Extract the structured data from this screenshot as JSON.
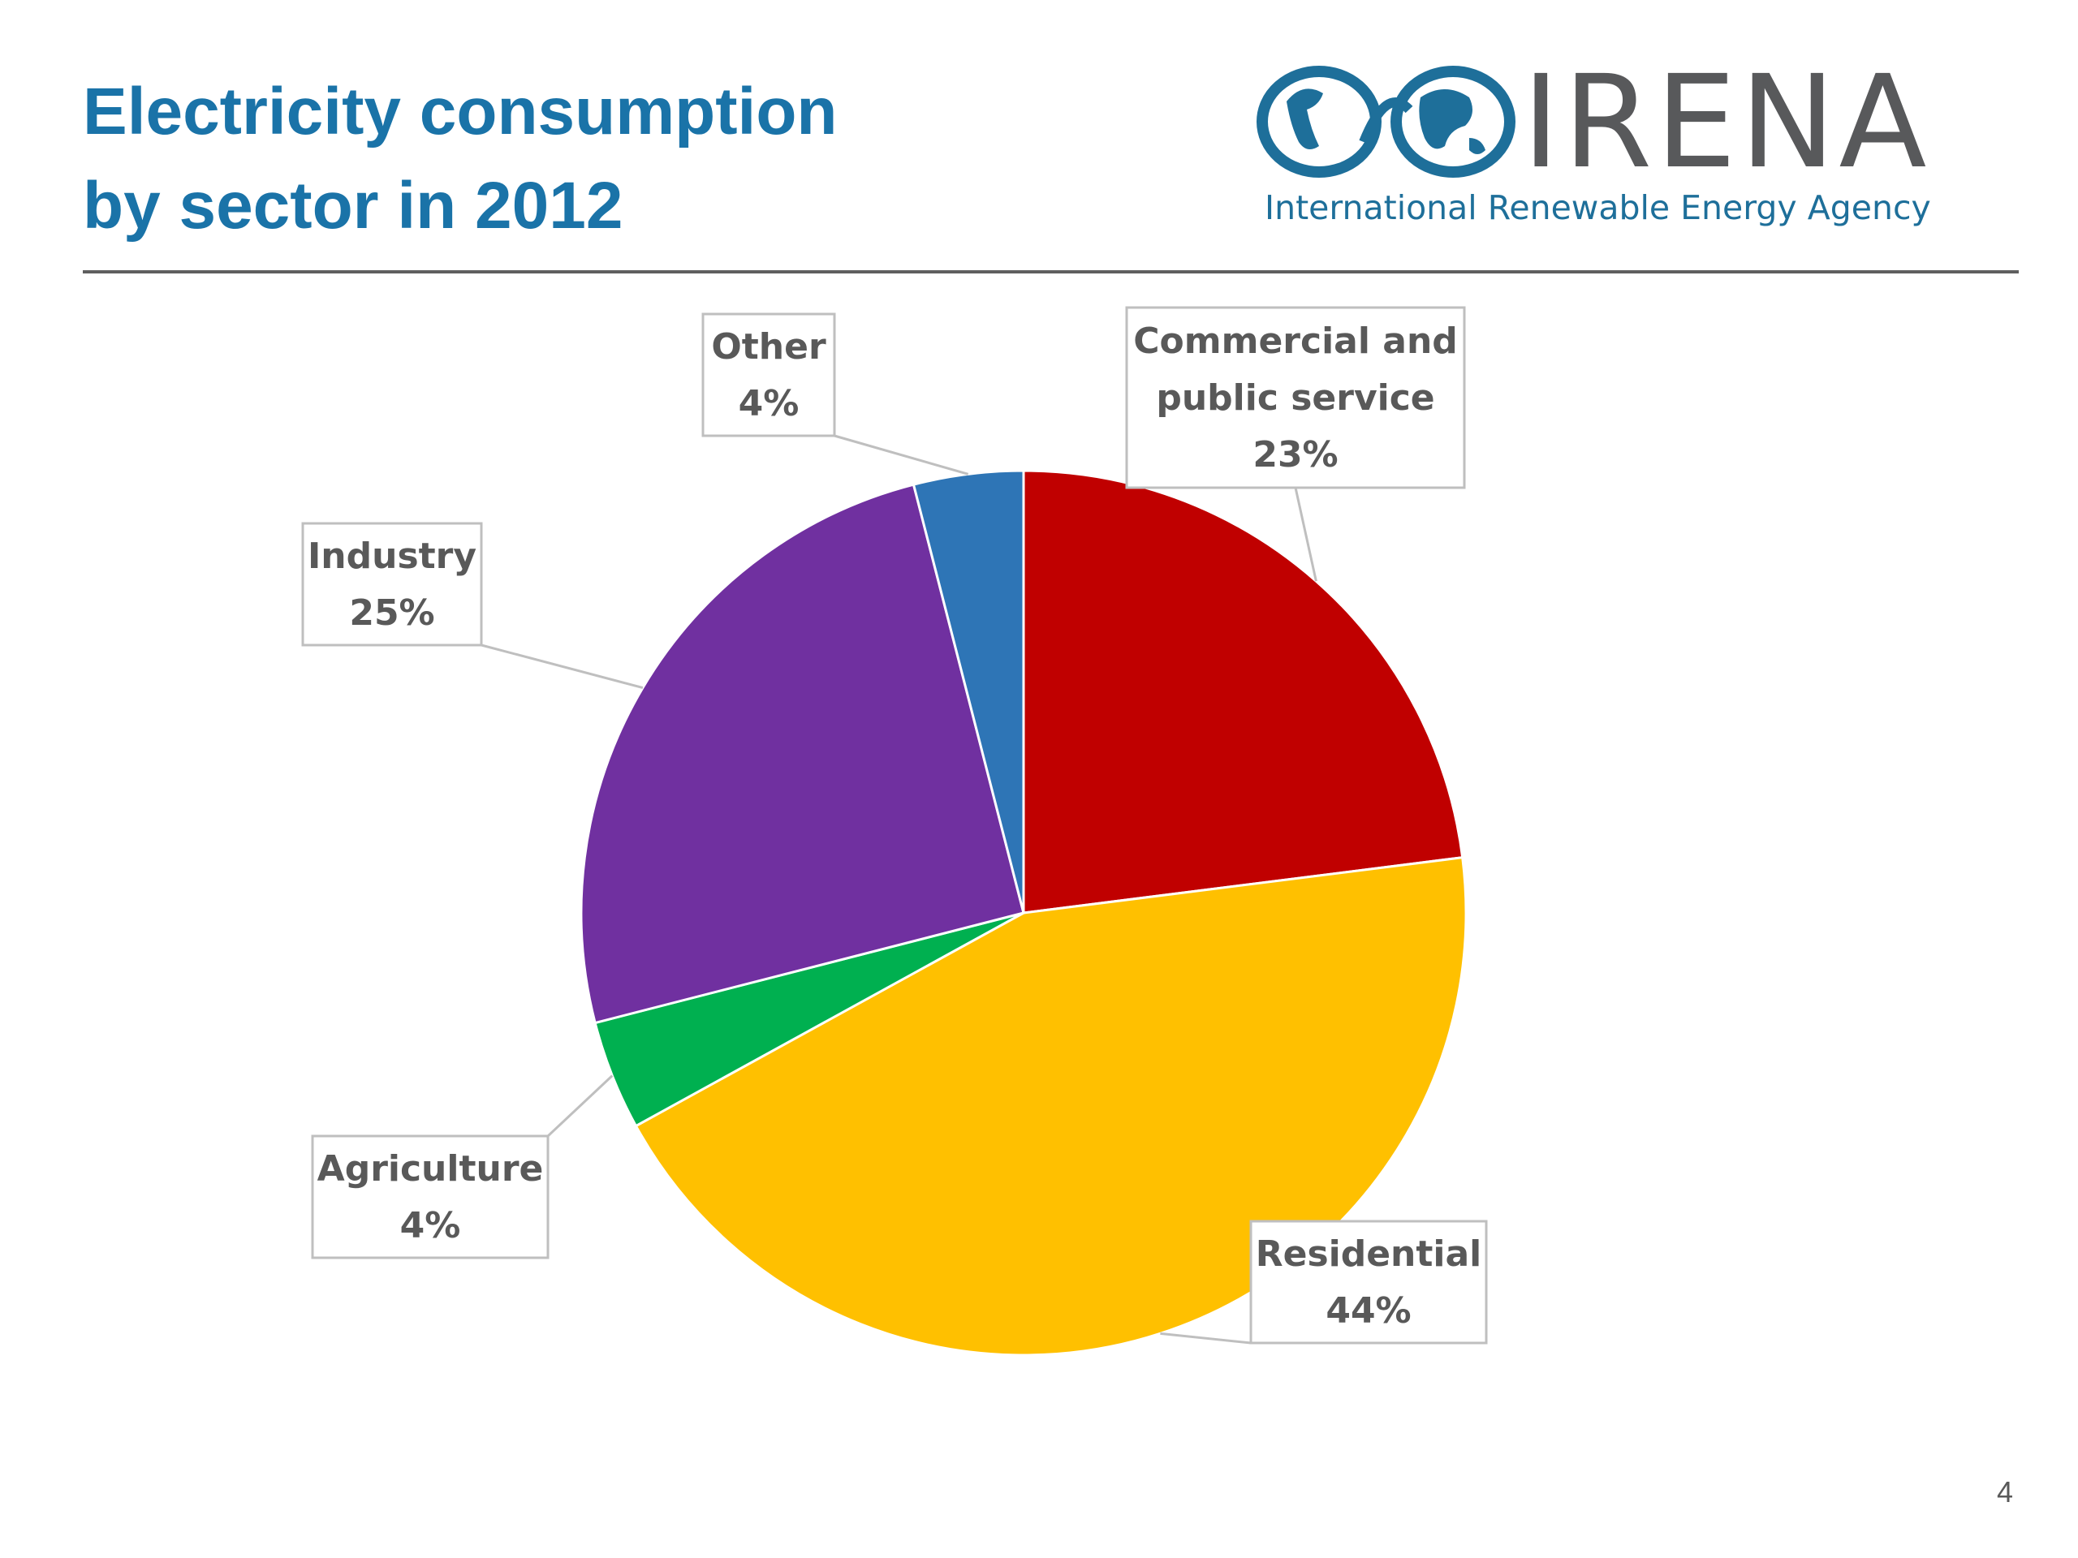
{
  "slide": {
    "title_line1": "Electricity consumption",
    "title_line2": "by sector in 2012",
    "page_number": "4"
  },
  "logo": {
    "wordmark": "IRENA",
    "tagline": "International Renewable Energy Agency",
    "colors": {
      "globe": "#1e6f9a",
      "text": "#58595b"
    }
  },
  "colors": {
    "title": "#1a73a8",
    "rule": "#5f5f5f",
    "label_text": "#595959"
  },
  "chart_data": {
    "type": "pie",
    "start": "12 o'clock",
    "direction": "clockwise",
    "slices": [
      {
        "label": "Commercial and public service",
        "value": 23,
        "display": "23%",
        "color": "#c00000"
      },
      {
        "label": "Residential",
        "value": 44,
        "display": "44%",
        "color": "#ffc000"
      },
      {
        "label": "Agriculture",
        "value": 4,
        "display": "4%",
        "color": "#00b050"
      },
      {
        "label": "Industry",
        "value": 25,
        "display": "25%",
        "color": "#7030a0"
      },
      {
        "label": "Other",
        "value": 4,
        "display": "4%",
        "color": "#2e75b6"
      }
    ]
  }
}
